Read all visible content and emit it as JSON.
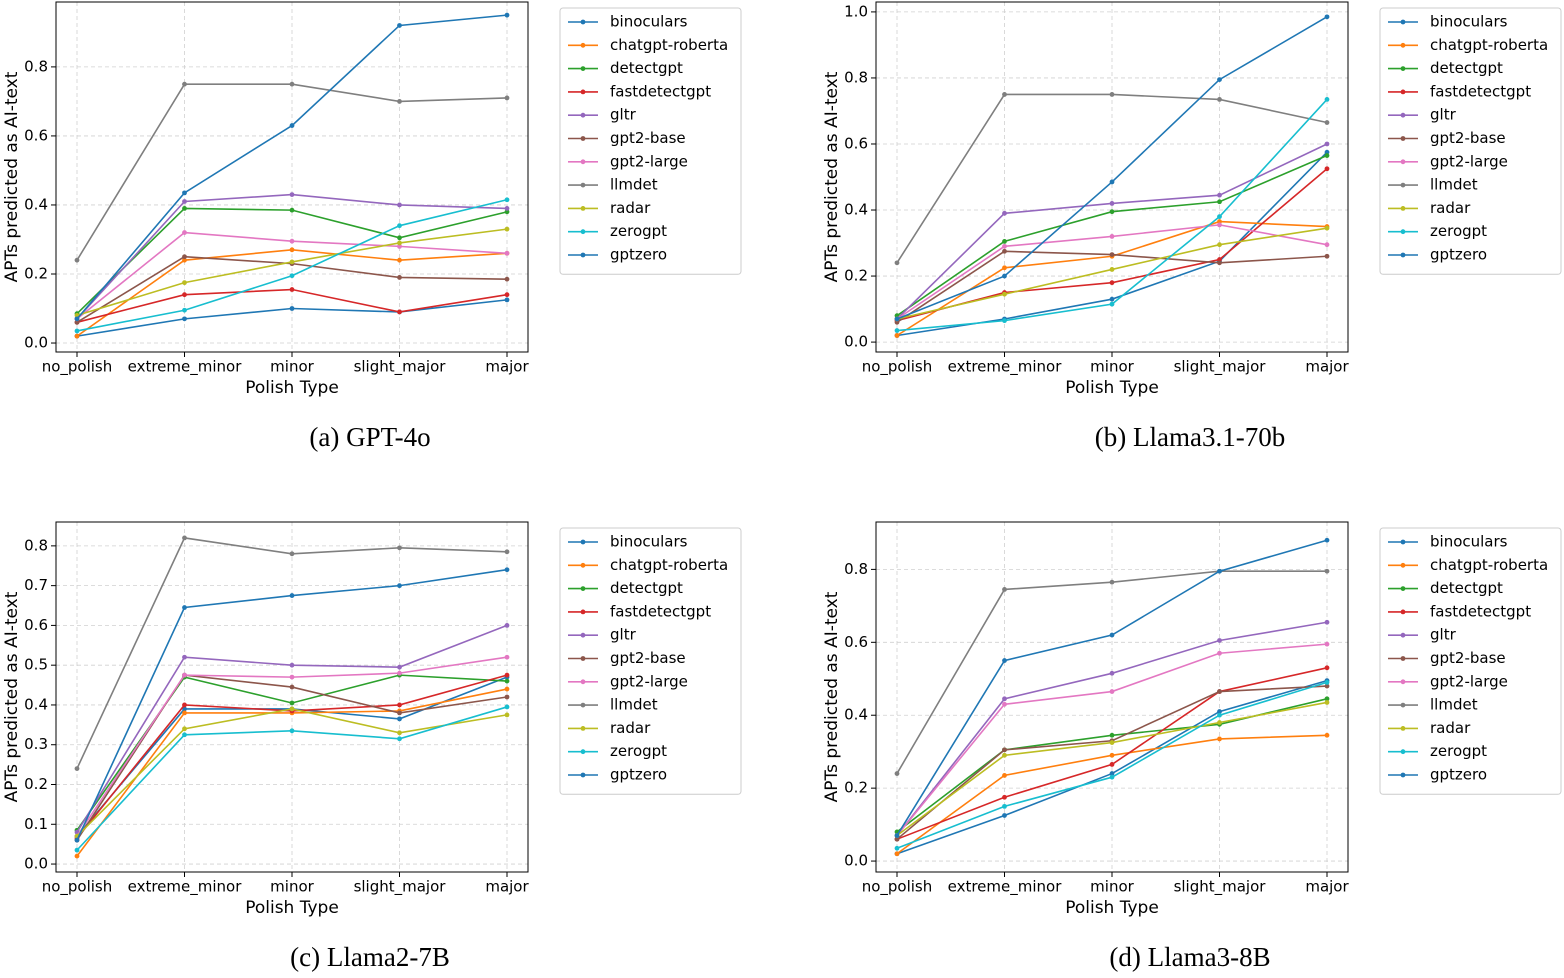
{
  "chart_data": [
    {
      "type": "line",
      "title": "(a) GPT-4o",
      "x_label": "Polish Type",
      "y_label": "APTs predicted as AI-text",
      "categories": [
        "no_polish",
        "extreme_minor",
        "minor",
        "slight_major",
        "major"
      ],
      "ylim": [
        -0.026,
        0.988
      ],
      "yticks": [
        {
          "value": 0,
          "label": "0.0"
        },
        0.2,
        0.4,
        0.6,
        0.8
      ],
      "grid": true,
      "legend": "outside right",
      "series": [
        {
          "name": "binoculars",
          "color": "#1f77b4",
          "values": [
            0.02,
            0.07,
            0.1,
            0.09,
            0.125
          ]
        },
        {
          "name": "chatgpt-roberta",
          "color": "#ff7f0e",
          "values": [
            0.02,
            0.24,
            0.27,
            0.24,
            0.26
          ]
        },
        {
          "name": "detectgpt",
          "color": "#2ca02c",
          "values": [
            0.085,
            0.39,
            0.385,
            0.305,
            0.38
          ]
        },
        {
          "name": "fastdetectgpt",
          "color": "#d62728",
          "values": [
            0.06,
            0.14,
            0.155,
            0.09,
            0.14
          ]
        },
        {
          "name": "gltr",
          "color": "#9467bd",
          "values": [
            0.07,
            0.41,
            0.43,
            0.4,
            0.39
          ]
        },
        {
          "name": "gpt2-base",
          "color": "#8c564b",
          "values": [
            0.06,
            0.25,
            0.23,
            0.19,
            0.185
          ]
        },
        {
          "name": "gpt2-large",
          "color": "#e377c2",
          "values": [
            0.07,
            0.32,
            0.295,
            0.28,
            0.26
          ]
        },
        {
          "name": "llmdet",
          "color": "#7f7f7f",
          "values": [
            0.24,
            0.75,
            0.75,
            0.7,
            0.71
          ]
        },
        {
          "name": "radar",
          "color": "#bcbd22",
          "values": [
            0.08,
            0.175,
            0.235,
            0.29,
            0.33
          ]
        },
        {
          "name": "zerogpt",
          "color": "#17becf",
          "values": [
            0.035,
            0.095,
            0.195,
            0.34,
            0.415
          ]
        },
        {
          "name": "gptzero",
          "color": "#1f77b4",
          "values": [
            0.07,
            0.435,
            0.63,
            0.92,
            0.95
          ]
        }
      ]
    },
    {
      "type": "line",
      "title": "(b) Llama3.1-70b",
      "x_label": "Polish Type",
      "y_label": "APTs predicted as AI-text",
      "categories": [
        "no_polish",
        "extreme_minor",
        "minor",
        "slight_major",
        "major"
      ],
      "ylim": [
        -0.03,
        1.03
      ],
      "yticks": [
        {
          "value": 0,
          "label": "0.0"
        },
        0.2,
        0.4,
        0.6,
        0.8,
        {
          "value": 1,
          "label": "1.0"
        }
      ],
      "grid": true,
      "legend": "outside right",
      "series": [
        {
          "name": "binoculars",
          "color": "#1f77b4",
          "values": [
            0.02,
            0.07,
            0.13,
            0.245,
            0.575
          ]
        },
        {
          "name": "chatgpt-roberta",
          "color": "#ff7f0e",
          "values": [
            0.02,
            0.225,
            0.26,
            0.365,
            0.35
          ]
        },
        {
          "name": "detectgpt",
          "color": "#2ca02c",
          "values": [
            0.08,
            0.305,
            0.395,
            0.425,
            0.565
          ]
        },
        {
          "name": "fastdetectgpt",
          "color": "#d62728",
          "values": [
            0.065,
            0.15,
            0.18,
            0.25,
            0.525
          ]
        },
        {
          "name": "gltr",
          "color": "#9467bd",
          "values": [
            0.07,
            0.39,
            0.42,
            0.445,
            0.6
          ]
        },
        {
          "name": "gpt2-base",
          "color": "#8c564b",
          "values": [
            0.06,
            0.275,
            0.265,
            0.24,
            0.26
          ]
        },
        {
          "name": "gpt2-large",
          "color": "#e377c2",
          "values": [
            0.07,
            0.29,
            0.32,
            0.355,
            0.295
          ]
        },
        {
          "name": "llmdet",
          "color": "#7f7f7f",
          "values": [
            0.24,
            0.75,
            0.75,
            0.735,
            0.665
          ]
        },
        {
          "name": "radar",
          "color": "#bcbd22",
          "values": [
            0.07,
            0.145,
            0.22,
            0.295,
            0.345
          ]
        },
        {
          "name": "zerogpt",
          "color": "#17becf",
          "values": [
            0.035,
            0.065,
            0.115,
            0.38,
            0.735
          ]
        },
        {
          "name": "gptzero",
          "color": "#1f77b4",
          "values": [
            0.07,
            0.2,
            0.485,
            0.795,
            0.985
          ]
        }
      ]
    },
    {
      "type": "line",
      "title": "(c) Llama2-7B",
      "x_label": "Polish Type",
      "y_label": "APTs predicted as AI-text",
      "categories": [
        "no_polish",
        "extreme_minor",
        "minor",
        "slight_major",
        "major"
      ],
      "ylim": [
        -0.02,
        0.86
      ],
      "yticks": [
        {
          "value": 0,
          "label": "0.0"
        },
        0.1,
        0.2,
        0.3,
        0.4,
        0.5,
        0.6,
        0.7,
        0.8
      ],
      "grid": true,
      "legend": "outside right",
      "series": [
        {
          "name": "binoculars",
          "color": "#1f77b4",
          "values": [
            0.07,
            0.39,
            0.39,
            0.365,
            0.47
          ]
        },
        {
          "name": "chatgpt-roberta",
          "color": "#ff7f0e",
          "values": [
            0.02,
            0.38,
            0.38,
            0.385,
            0.44
          ]
        },
        {
          "name": "detectgpt",
          "color": "#2ca02c",
          "values": [
            0.085,
            0.47,
            0.405,
            0.475,
            0.46
          ]
        },
        {
          "name": "fastdetectgpt",
          "color": "#d62728",
          "values": [
            0.065,
            0.4,
            0.385,
            0.4,
            0.475
          ]
        },
        {
          "name": "gltr",
          "color": "#9467bd",
          "values": [
            0.08,
            0.52,
            0.5,
            0.495,
            0.6
          ]
        },
        {
          "name": "gpt2-base",
          "color": "#8c564b",
          "values": [
            0.06,
            0.475,
            0.445,
            0.38,
            0.42
          ]
        },
        {
          "name": "gpt2-large",
          "color": "#e377c2",
          "values": [
            0.07,
            0.475,
            0.47,
            0.48,
            0.52
          ]
        },
        {
          "name": "llmdet",
          "color": "#7f7f7f",
          "values": [
            0.24,
            0.82,
            0.78,
            0.795,
            0.785
          ]
        },
        {
          "name": "radar",
          "color": "#bcbd22",
          "values": [
            0.07,
            0.34,
            0.39,
            0.33,
            0.375
          ]
        },
        {
          "name": "zerogpt",
          "color": "#17becf",
          "values": [
            0.035,
            0.325,
            0.335,
            0.315,
            0.395
          ]
        },
        {
          "name": "gptzero",
          "color": "#1f77b4",
          "values": [
            0.06,
            0.645,
            0.675,
            0.7,
            0.74
          ]
        }
      ]
    },
    {
      "type": "line",
      "title": "(d) Llama3-8B",
      "x_label": "Polish Type",
      "y_label": "APTs predicted as AI-text",
      "categories": [
        "no_polish",
        "extreme_minor",
        "minor",
        "slight_major",
        "major"
      ],
      "ylim": [
        -0.03,
        0.93
      ],
      "yticks": [
        {
          "value": 0,
          "label": "0.0"
        },
        0.2,
        0.4,
        0.6,
        0.8
      ],
      "grid": true,
      "legend": "outside right",
      "series": [
        {
          "name": "binoculars",
          "color": "#1f77b4",
          "values": [
            0.02,
            0.125,
            0.24,
            0.41,
            0.495
          ]
        },
        {
          "name": "chatgpt-roberta",
          "color": "#ff7f0e",
          "values": [
            0.02,
            0.235,
            0.29,
            0.335,
            0.345
          ]
        },
        {
          "name": "detectgpt",
          "color": "#2ca02c",
          "values": [
            0.08,
            0.305,
            0.345,
            0.375,
            0.445
          ]
        },
        {
          "name": "fastdetectgpt",
          "color": "#d62728",
          "values": [
            0.06,
            0.175,
            0.265,
            0.465,
            0.53
          ]
        },
        {
          "name": "gltr",
          "color": "#9467bd",
          "values": [
            0.07,
            0.445,
            0.515,
            0.605,
            0.655
          ]
        },
        {
          "name": "gpt2-base",
          "color": "#8c564b",
          "values": [
            0.06,
            0.305,
            0.33,
            0.465,
            0.48
          ]
        },
        {
          "name": "gpt2-large",
          "color": "#e377c2",
          "values": [
            0.07,
            0.43,
            0.465,
            0.57,
            0.595
          ]
        },
        {
          "name": "llmdet",
          "color": "#7f7f7f",
          "values": [
            0.24,
            0.745,
            0.765,
            0.795,
            0.795
          ]
        },
        {
          "name": "radar",
          "color": "#bcbd22",
          "values": [
            0.07,
            0.29,
            0.325,
            0.38,
            0.435
          ]
        },
        {
          "name": "zerogpt",
          "color": "#17becf",
          "values": [
            0.035,
            0.15,
            0.23,
            0.4,
            0.49
          ]
        },
        {
          "name": "gptzero",
          "color": "#1f77b4",
          "values": [
            0.07,
            0.55,
            0.62,
            0.795,
            0.88
          ]
        }
      ]
    }
  ]
}
